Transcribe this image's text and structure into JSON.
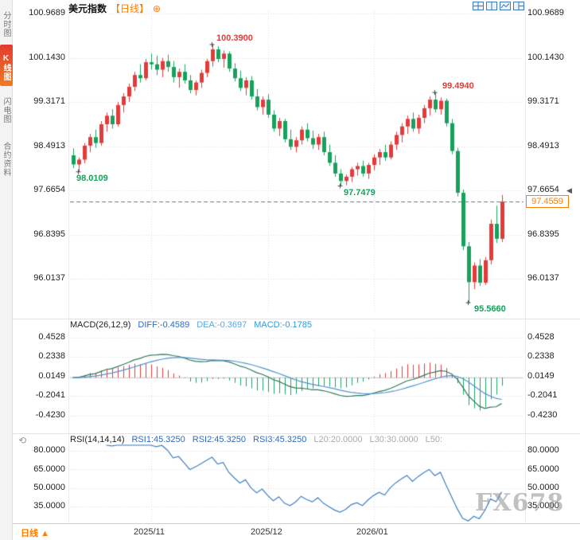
{
  "sidebar": {
    "tabs": [
      {
        "label": "分时图",
        "active": false
      },
      {
        "label": "K线图",
        "active": true
      },
      {
        "label": "闪电图",
        "active": false
      },
      {
        "label": "合约资料",
        "active": false
      }
    ]
  },
  "header": {
    "symbol": "美元指数",
    "period": "【日线】",
    "plus": "⊕"
  },
  "icons": {
    "refresh": "⟲",
    "axis_marker": "◀",
    "period_arrow": "▲"
  },
  "macd_panel": {
    "title": "MACD(26,12,9)",
    "diff": "DIFF:-0.4589",
    "dea": "DEA:-0.3697",
    "macd": "MACD:-0.1785"
  },
  "rsi_panel": {
    "title": "RSI(14,14,14)",
    "rsi1": "RSI1:45.3250",
    "rsi2": "RSI2:45.3250",
    "rsi3": "RSI3:45.3250",
    "l20": "L20:20.0000",
    "l30": "L30:30.0000",
    "l50": "L50:"
  },
  "bottom": {
    "period": "日线"
  },
  "watermark": "FX678",
  "colors": {
    "up": "#e23b3b",
    "down": "#18a05c",
    "accent": "#ff7d00",
    "grid": "#dcdcdc",
    "dashed": "#5b7f8d",
    "diff_line": "#2b7a5b",
    "dea_line": "#4f94cd",
    "rsi_line": "#3f7fc1",
    "marker": "#444"
  },
  "chart_data": [
    {
      "type": "candlestick",
      "name": "美元指数 日线",
      "y_ticks": [
        "100.9689",
        "100.1430",
        "99.3171",
        "98.4913",
        "97.6654",
        "96.8395",
        "96.0137"
      ],
      "current_price": "97.4559",
      "x_ticks": [
        {
          "label": "2025/11",
          "index": 14
        },
        {
          "label": "2025/12",
          "index": 35
        },
        {
          "label": "2026/01",
          "index": 54
        }
      ],
      "annotations": [
        {
          "text": "100.3900",
          "index": 25,
          "price": 100.39,
          "kind": "high"
        },
        {
          "text": "99.4940",
          "index": 65,
          "price": 99.494,
          "kind": "high"
        },
        {
          "text": "98.0109",
          "index": 1,
          "price": 98.0109,
          "kind": "low"
        },
        {
          "text": "97.7479",
          "index": 48,
          "price": 97.7479,
          "kind": "low"
        },
        {
          "text": "95.5660",
          "index": 71,
          "price": 95.566,
          "kind": "low"
        }
      ],
      "ohlc": [
        [
          98.32,
          98.45,
          98.08,
          98.15
        ],
        [
          98.15,
          98.28,
          98.011,
          98.24
        ],
        [
          98.24,
          98.55,
          98.17,
          98.5
        ],
        [
          98.5,
          98.72,
          98.38,
          98.66
        ],
        [
          98.66,
          98.8,
          98.46,
          98.55
        ],
        [
          98.55,
          98.96,
          98.5,
          98.9
        ],
        [
          98.9,
          99.12,
          98.76,
          99.06
        ],
        [
          99.06,
          99.18,
          98.82,
          98.9
        ],
        [
          98.9,
          99.32,
          98.86,
          99.26
        ],
        [
          99.26,
          99.48,
          99.12,
          99.42
        ],
        [
          99.42,
          99.66,
          99.32,
          99.6
        ],
        [
          99.6,
          99.88,
          99.52,
          99.82
        ],
        [
          99.82,
          100.02,
          99.68,
          99.76
        ],
        [
          99.76,
          100.12,
          99.72,
          100.06
        ],
        [
          100.06,
          100.22,
          99.92,
          100.02
        ],
        [
          100.02,
          100.18,
          99.82,
          99.92
        ],
        [
          99.92,
          100.14,
          99.78,
          100.08
        ],
        [
          100.08,
          100.2,
          99.88,
          99.97
        ],
        [
          99.97,
          100.08,
          99.68,
          99.78
        ],
        [
          99.78,
          99.94,
          99.58,
          99.88
        ],
        [
          99.88,
          100.02,
          99.66,
          99.72
        ],
        [
          99.72,
          99.82,
          99.48,
          99.54
        ],
        [
          99.54,
          99.72,
          99.44,
          99.68
        ],
        [
          99.68,
          99.92,
          99.58,
          99.86
        ],
        [
          99.86,
          100.12,
          99.78,
          100.08
        ],
        [
          100.08,
          100.39,
          99.98,
          100.3
        ],
        [
          100.3,
          100.36,
          100.06,
          100.12
        ],
        [
          100.12,
          100.28,
          99.96,
          100.22
        ],
        [
          100.22,
          100.26,
          99.88,
          99.94
        ],
        [
          99.94,
          100.04,
          99.7,
          99.76
        ],
        [
          99.76,
          99.9,
          99.52,
          99.58
        ],
        [
          99.58,
          99.78,
          99.44,
          99.72
        ],
        [
          99.72,
          99.8,
          99.36,
          99.42
        ],
        [
          99.42,
          99.56,
          99.16,
          99.22
        ],
        [
          99.22,
          99.42,
          99.08,
          99.36
        ],
        [
          99.36,
          99.46,
          99.02,
          99.08
        ],
        [
          99.08,
          99.16,
          98.76,
          98.82
        ],
        [
          98.82,
          99.02,
          98.68,
          98.96
        ],
        [
          98.96,
          99.0,
          98.56,
          98.62
        ],
        [
          98.62,
          98.8,
          98.42,
          98.48
        ],
        [
          98.48,
          98.66,
          98.38,
          98.6
        ],
        [
          98.6,
          98.86,
          98.52,
          98.8
        ],
        [
          98.8,
          98.92,
          98.58,
          98.64
        ],
        [
          98.64,
          98.78,
          98.44,
          98.52
        ],
        [
          98.52,
          98.72,
          98.42,
          98.66
        ],
        [
          98.66,
          98.76,
          98.32,
          98.38
        ],
        [
          98.38,
          98.52,
          98.12,
          98.18
        ],
        [
          98.18,
          98.32,
          97.92,
          97.98
        ],
        [
          97.98,
          98.06,
          97.748,
          97.84
        ],
        [
          97.84,
          97.96,
          97.76,
          97.92
        ],
        [
          97.92,
          98.1,
          97.82,
          98.06
        ],
        [
          98.06,
          98.18,
          97.94,
          98.12
        ],
        [
          98.12,
          98.22,
          97.92,
          97.98
        ],
        [
          97.98,
          98.18,
          97.88,
          98.14
        ],
        [
          98.14,
          98.34,
          98.04,
          98.28
        ],
        [
          98.28,
          98.44,
          98.14,
          98.38
        ],
        [
          98.38,
          98.52,
          98.22,
          98.28
        ],
        [
          98.28,
          98.58,
          98.24,
          98.52
        ],
        [
          98.52,
          98.76,
          98.42,
          98.7
        ],
        [
          98.7,
          98.92,
          98.56,
          98.86
        ],
        [
          98.86,
          99.06,
          98.72,
          99.0
        ],
        [
          99.0,
          99.12,
          98.76,
          98.82
        ],
        [
          98.82,
          99.08,
          98.72,
          99.02
        ],
        [
          99.02,
          99.26,
          98.92,
          99.2
        ],
        [
          99.2,
          99.42,
          99.06,
          99.36
        ],
        [
          99.36,
          99.494,
          99.12,
          99.18
        ],
        [
          99.18,
          99.4,
          99.08,
          99.34
        ],
        [
          99.34,
          99.38,
          98.86,
          98.92
        ],
        [
          98.92,
          99.0,
          98.34,
          98.4
        ],
        [
          98.4,
          98.46,
          97.55,
          97.62
        ],
        [
          97.62,
          97.68,
          96.55,
          96.62
        ],
        [
          96.62,
          96.7,
          95.566,
          95.95
        ],
        [
          95.95,
          96.32,
          95.82,
          96.26
        ],
        [
          96.26,
          96.38,
          95.88,
          95.94
        ],
        [
          95.94,
          96.42,
          95.9,
          96.36
        ],
        [
          96.36,
          97.12,
          96.28,
          97.04
        ],
        [
          97.04,
          97.38,
          96.68,
          96.76
        ],
        [
          96.76,
          97.58,
          96.7,
          97.4559
        ]
      ]
    },
    {
      "type": "macd",
      "params": [
        26,
        12,
        9
      ],
      "y_ticks": [
        "0.4528",
        "0.2338",
        "0.0149",
        "-0.2041",
        "-0.4230"
      ],
      "readout": {
        "diff": -0.4589,
        "dea": -0.3697,
        "macd": -0.1785
      }
    },
    {
      "type": "line",
      "name": "RSI",
      "params": [
        14,
        14,
        14
      ],
      "y_ticks": [
        "80.0000",
        "65.0000",
        "50.0000",
        "35.0000"
      ],
      "readout": {
        "rsi1": 45.325,
        "rsi2": 45.325,
        "rsi3": 45.325,
        "l20": 20.0,
        "l30": 30.0
      }
    }
  ]
}
